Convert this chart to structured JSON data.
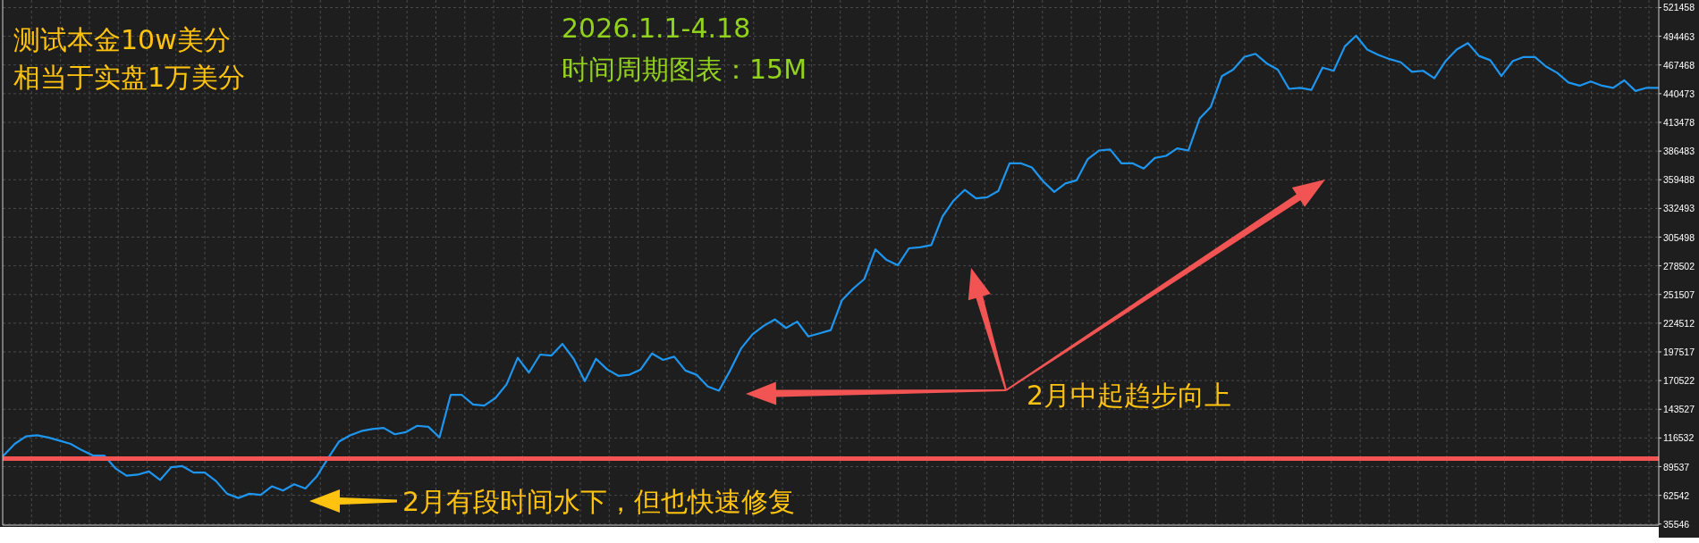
{
  "chart_data": {
    "type": "line",
    "categories": [
      null,
      null,
      null,
      null,
      null,
      null,
      null,
      null,
      null,
      null,
      null,
      null,
      null,
      null,
      null,
      null,
      null,
      null,
      null,
      null,
      null,
      null,
      null,
      null,
      null,
      null,
      null,
      null,
      null,
      null,
      null,
      null,
      null,
      null,
      null,
      null,
      null,
      null,
      null,
      null,
      null,
      null,
      null,
      null,
      null,
      null,
      null,
      null,
      null,
      null,
      null,
      null,
      null,
      null,
      null,
      null,
      null,
      null,
      null,
      null,
      null,
      null,
      null,
      null,
      null,
      null,
      null,
      null,
      null,
      null,
      null,
      null,
      null,
      null,
      null,
      null,
      null,
      null,
      null,
      null,
      null,
      null,
      null,
      null,
      null,
      null,
      null,
      null,
      null,
      null,
      null,
      null,
      null,
      null,
      null,
      null,
      null,
      null,
      null,
      null,
      null,
      null,
      null,
      null,
      null,
      null,
      null,
      null,
      null,
      null,
      null,
      null,
      null,
      null,
      null,
      null,
      null,
      null,
      null,
      null,
      null,
      null,
      null,
      null,
      null,
      null,
      null,
      null,
      null,
      null,
      null,
      null,
      null,
      null,
      null,
      null,
      null,
      null,
      null,
      null,
      null,
      null,
      null,
      null,
      null,
      null,
      null,
      null,
      null
    ],
    "values": [
      100000,
      111000,
      118000,
      119000,
      117000,
      114000,
      111000,
      105000,
      100000,
      100000,
      88000,
      81000,
      82000,
      85000,
      77000,
      89000,
      90000,
      84000,
      84000,
      76000,
      64000,
      60000,
      64000,
      63000,
      71000,
      67000,
      73000,
      69000,
      80000,
      97000,
      113000,
      119000,
      123000,
      125000,
      126000,
      120000,
      122000,
      128000,
      127000,
      117000,
      157000,
      157000,
      148000,
      147000,
      154000,
      167000,
      192000,
      178000,
      195000,
      194000,
      205000,
      191000,
      170000,
      191000,
      181000,
      175000,
      176000,
      181000,
      196000,
      190000,
      193000,
      180000,
      176000,
      165000,
      161000,
      180000,
      201000,
      214000,
      222000,
      228000,
      220000,
      226000,
      212000,
      215000,
      218000,
      246000,
      257000,
      266000,
      294000,
      284000,
      279000,
      295000,
      296000,
      298000,
      325000,
      340000,
      350000,
      342000,
      343000,
      349000,
      375000,
      375000,
      371000,
      358000,
      348000,
      356000,
      359000,
      379000,
      387000,
      388000,
      375000,
      375000,
      370000,
      380000,
      382000,
      389000,
      387000,
      417000,
      428000,
      457000,
      463000,
      475000,
      478000,
      469000,
      463000,
      445000,
      446000,
      444000,
      465000,
      462000,
      485000,
      495000,
      482000,
      477000,
      473000,
      470000,
      461000,
      462000,
      455000,
      471000,
      482000,
      488000,
      476000,
      472000,
      457000,
      471000,
      475000,
      475000,
      466000,
      460000,
      451000,
      448000,
      452000,
      448000,
      446000,
      453000,
      443000,
      446000,
      446000
    ],
    "color": "#1e96f0",
    "ylim": [
      34500,
      528600
    ],
    "yticks": [
      35546,
      62542,
      89537,
      116532,
      143527,
      170522,
      197517,
      224512,
      251507,
      278502,
      305498,
      332493,
      359488,
      386483,
      413478,
      440473,
      467468,
      494463,
      521458
    ],
    "grid": true,
    "tick_labels": "y",
    "ref_lines": [
      {
        "axis": "y",
        "value": 97000,
        "color": "#f25454"
      }
    ],
    "annotations": [
      "测试本金10w美分",
      "相当于实盘1万美分",
      "2026.1.1-4.18",
      "时间周期图表：15M",
      "2月有段时间水下，但也快速修复",
      "2月中起趋步向上"
    ]
  }
}
